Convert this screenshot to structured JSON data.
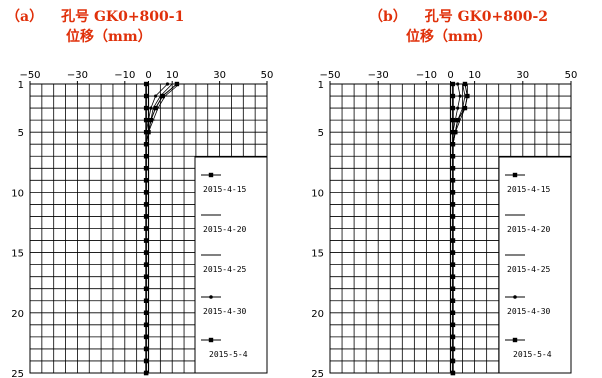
{
  "chart_data": [
    {
      "type": "line",
      "title_prefix": "（a）",
      "title": "孔号 GK0+800-1",
      "subtitle": "位移（mm）",
      "xlim": [
        -50,
        50
      ],
      "ylim": [
        1,
        25
      ],
      "y_inverted": true,
      "x_ticks": [
        "−50",
        "−30",
        "−10",
        "0",
        "10",
        "30",
        "50"
      ],
      "x_tick_values": [
        -50,
        -30,
        -10,
        0,
        10,
        30,
        50
      ],
      "y_ticks": [
        "1",
        "5",
        "10",
        "15",
        "20",
        "25"
      ],
      "y_tick_values": [
        1,
        5,
        10,
        15,
        20,
        25
      ],
      "grid": true,
      "legend_position": "bottom-right",
      "depth": [
        1,
        2,
        3,
        4,
        5,
        6,
        7,
        8,
        9,
        10,
        11,
        12,
        13,
        14,
        15,
        16,
        17,
        18,
        19,
        20,
        21,
        22,
        23,
        24,
        25
      ],
      "series": [
        {
          "name": "2015-4-15",
          "marker": "square",
          "values": [
            -1,
            -1,
            -1,
            -1,
            -1,
            -1,
            -1,
            -1,
            -1,
            -1,
            -1,
            -1,
            -1,
            -1,
            -1,
            -1,
            -1,
            -1,
            -1,
            -1,
            -1,
            -1,
            -1,
            -1,
            -1
          ]
        },
        {
          "name": "2015-4-20",
          "marker": "tick",
          "values": [
            13,
            7,
            4,
            2,
            0,
            -1,
            -1,
            -1,
            -1,
            -1,
            -1,
            -1,
            -1,
            -1,
            -1,
            -1,
            -1,
            -1,
            -1,
            -1,
            -1,
            -1,
            -1,
            -1,
            -1
          ]
        },
        {
          "name": "2015-4-25",
          "marker": "none",
          "values": [
            10,
            5,
            2,
            1,
            0,
            -1,
            -1,
            -1,
            -1,
            -1,
            -1,
            -1,
            -1,
            -1,
            -1,
            -1,
            -1,
            -1,
            -1,
            -1,
            -1,
            -1,
            -1,
            -1,
            -1
          ]
        },
        {
          "name": "2015-4-30",
          "marker": "dot",
          "values": [
            8,
            3,
            1,
            0,
            -1,
            -1,
            -1,
            -1,
            -1,
            -1,
            -1,
            -1,
            -1,
            -1,
            -1,
            -1,
            -1,
            -1,
            -1,
            -1,
            -1,
            -1,
            -1,
            -1,
            -1
          ]
        },
        {
          "name": "2015-5-4",
          "marker": "square",
          "values": [
            12,
            6,
            3,
            1,
            0,
            -1,
            -1,
            -1,
            -1,
            -1,
            -1,
            -1,
            -1,
            -1,
            -1,
            -1,
            -1,
            -1,
            -1,
            -1,
            -1,
            -1,
            -1,
            -1,
            -1
          ]
        }
      ]
    },
    {
      "type": "line",
      "title_prefix": "（b）",
      "title": "孔号 GK0+800-2",
      "subtitle": "位移（mm）",
      "xlim": [
        -50,
        50
      ],
      "ylim": [
        1,
        25
      ],
      "y_inverted": true,
      "x_ticks": [
        "−50",
        "−30",
        "−10",
        "0",
        "10",
        "30",
        "50"
      ],
      "x_tick_values": [
        -50,
        -30,
        -10,
        0,
        10,
        30,
        50
      ],
      "y_ticks": [
        "1",
        "5",
        "10",
        "15",
        "20",
        "25"
      ],
      "y_tick_values": [
        1,
        5,
        10,
        15,
        20,
        25
      ],
      "grid": true,
      "legend_position": "bottom-right",
      "depth": [
        1,
        2,
        3,
        4,
        5,
        6,
        7,
        8,
        9,
        10,
        11,
        12,
        13,
        14,
        15,
        16,
        17,
        18,
        19,
        20,
        21,
        22,
        23,
        24,
        25
      ],
      "series": [
        {
          "name": "2015-4-15",
          "marker": "square",
          "values": [
            1,
            1,
            1,
            1,
            1,
            1,
            1,
            1,
            1,
            1,
            1,
            1,
            1,
            1,
            1,
            1,
            1,
            1,
            1,
            1,
            1,
            1,
            1,
            1,
            1
          ]
        },
        {
          "name": "2015-4-20",
          "marker": "tick",
          "values": [
            5,
            6,
            5,
            3,
            2,
            1,
            1,
            1,
            1,
            1,
            1,
            1,
            1,
            1,
            1,
            1,
            1,
            1,
            1,
            1,
            1,
            1,
            1,
            1,
            1
          ]
        },
        {
          "name": "2015-4-25",
          "marker": "none",
          "values": [
            7,
            7,
            6,
            4,
            2,
            1,
            1,
            1,
            1,
            1,
            1,
            1,
            1,
            1,
            1,
            1,
            1,
            1,
            1,
            1,
            1,
            1,
            1,
            1,
            1
          ]
        },
        {
          "name": "2015-4-30",
          "marker": "dot",
          "values": [
            3,
            4,
            3,
            2,
            1,
            1,
            1,
            1,
            1,
            1,
            1,
            1,
            1,
            1,
            1,
            1,
            1,
            1,
            1,
            1,
            1,
            1,
            1,
            1,
            1
          ]
        },
        {
          "name": "2015-5-4",
          "marker": "square",
          "values": [
            6,
            7,
            6,
            3,
            2,
            1,
            1,
            1,
            1,
            1,
            1,
            1,
            1,
            1,
            1,
            1,
            1,
            1,
            1,
            1,
            1,
            1,
            1,
            1,
            1
          ]
        }
      ]
    }
  ]
}
